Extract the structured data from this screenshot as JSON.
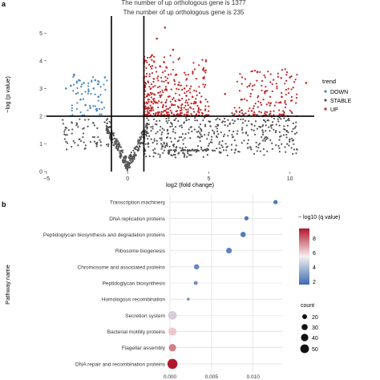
{
  "panel_a": {
    "label": "a",
    "title_line1": "The number of up orthologous gene is 1377",
    "title_line2": "The number of up orthologous gene is 235",
    "legend": {
      "title": "trend",
      "items": [
        {
          "label": "DOWN",
          "color": "#4a86b8"
        },
        {
          "label": "STABLE",
          "color": "#555555"
        },
        {
          "label": "UP",
          "color": "#c0282a"
        }
      ]
    }
  },
  "panel_b": {
    "label": "b",
    "legend_color_title": "− log10 (q value)",
    "legend_color_ticks": [
      "8",
      "6",
      "4",
      "2"
    ],
    "legend_size_title": "count",
    "legend_size_items": [
      "20",
      "30",
      "40",
      "50"
    ]
  },
  "chart_data": [
    {
      "type": "scatter",
      "title": "The number of up orthologous gene is 1377 / The number of up orthologous gene is 235",
      "xlabel": "log2 (fold change)",
      "ylabel": "−log (p value)",
      "xlim": [
        -5,
        11.5
      ],
      "ylim": [
        0,
        5.5
      ],
      "xticks": [
        -5,
        0,
        5,
        10
      ],
      "yticks": [
        0,
        1,
        2,
        3,
        4,
        5
      ],
      "thresholds": {
        "x": [
          -1,
          1
        ],
        "y": 2
      },
      "series": [
        {
          "name": "DOWN",
          "color": "#4a86b8",
          "points": [
            [
              -3.3,
              3.5
            ],
            [
              -3.0,
              3.3
            ],
            [
              -2.7,
              3.2
            ],
            [
              -2.4,
              2.9
            ],
            [
              -2.1,
              3.0
            ],
            [
              -1.8,
              2.7
            ],
            [
              -1.6,
              2.5
            ],
            [
              -2.9,
              2.6
            ],
            [
              -2.3,
              2.3
            ],
            [
              -1.9,
              2.2
            ],
            [
              -3.8,
              3.0
            ],
            [
              -3.5,
              3.1
            ],
            [
              -1.4,
              3.4
            ],
            [
              -2.6,
              2.4
            ],
            [
              -2.0,
              3.3
            ]
          ]
        },
        {
          "name": "UP",
          "color": "#c0282a",
          "points": [
            [
              1.5,
              4.2
            ],
            [
              2.0,
              3.8
            ],
            [
              2.5,
              3.2
            ],
            [
              3.0,
              3.5
            ],
            [
              3.5,
              3.0
            ],
            [
              4.0,
              2.7
            ],
            [
              2.3,
              5.2
            ],
            [
              1.8,
              4.8
            ],
            [
              2.8,
              4.4
            ],
            [
              4.5,
              2.5
            ],
            [
              6.0,
              2.8
            ],
            [
              7.5,
              3.1
            ],
            [
              8.0,
              3.6
            ],
            [
              8.5,
              2.9
            ],
            [
              9.5,
              2.7
            ],
            [
              10.0,
              3.4
            ],
            [
              7.0,
              2.6
            ],
            [
              3.3,
              2.3
            ],
            [
              1.3,
              2.6
            ],
            [
              11.0,
              3.2
            ]
          ]
        }
      ]
    },
    {
      "type": "scatter",
      "xlabel": "",
      "ylabel": "Pathway name",
      "xlim": [
        0,
        0.0135
      ],
      "xticks": [
        "0.000",
        "0.005",
        "0.010"
      ],
      "categories": [
        "Transcription machinery",
        "DNA replication proteins",
        "Peptidoglycan biosynthesis and degradation proteins",
        "Ribosome biogenesis",
        "Chromosome and associated proteins",
        "Peptidoglycan biosynthesis",
        "Homologous recombination",
        "Secretion system",
        "Bacterial motility proteins",
        "Flagellar assembly",
        "DNA repair and recombination proteins"
      ],
      "series": [
        {
          "name": "pathways",
          "x": [
            0.0127,
            0.0092,
            0.0088,
            0.0071,
            0.0032,
            0.0031,
            0.0022,
            0.0003,
            0.0003,
            0.0003,
            0.0003
          ],
          "count": [
            22,
            22,
            28,
            30,
            28,
            20,
            15,
            45,
            42,
            38,
            52
          ],
          "neg_log10_q": [
            2.3,
            2.3,
            2.4,
            2.6,
            2.8,
            2.8,
            3.0,
            4.5,
            5.5,
            7.0,
            9.0
          ]
        }
      ]
    }
  ]
}
